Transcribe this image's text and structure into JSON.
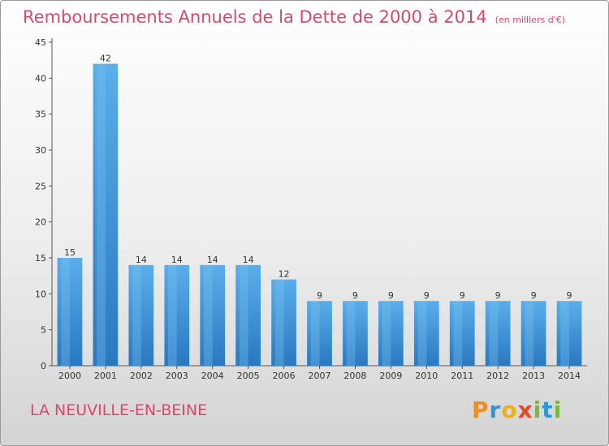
{
  "title": "Remboursements Annuels de la Dette de 2000 à 2014",
  "unit": "(en milliers d'€)",
  "commune": "LA NEUVILLE-EN-BEINE",
  "logo": {
    "letters": [
      "P",
      "r",
      "o",
      "x",
      "i",
      "t",
      "i"
    ],
    "colors": [
      "#f28c1e",
      "#3b8fd6",
      "#e8b21c",
      "#e04a2a",
      "#7ab83a",
      "#2a9bd8",
      "#7ab83a"
    ]
  },
  "chart_data": {
    "type": "bar",
    "title": "Remboursements Annuels de la Dette de 2000 à 2014",
    "ylim": [
      0,
      45
    ],
    "yticks": [
      0,
      5,
      10,
      15,
      20,
      25,
      30,
      35,
      40,
      45
    ],
    "grid": false,
    "categories": [
      "2000",
      "2001",
      "2002",
      "2003",
      "2004",
      "2005",
      "2006",
      "2007",
      "2008",
      "2009",
      "2010",
      "2011",
      "2012",
      "2013",
      "2014"
    ],
    "values": [
      15,
      42,
      14,
      14,
      14,
      14,
      12,
      9,
      9,
      9,
      9,
      9,
      9,
      9,
      9
    ],
    "bar_color": "#4a9fe0"
  }
}
